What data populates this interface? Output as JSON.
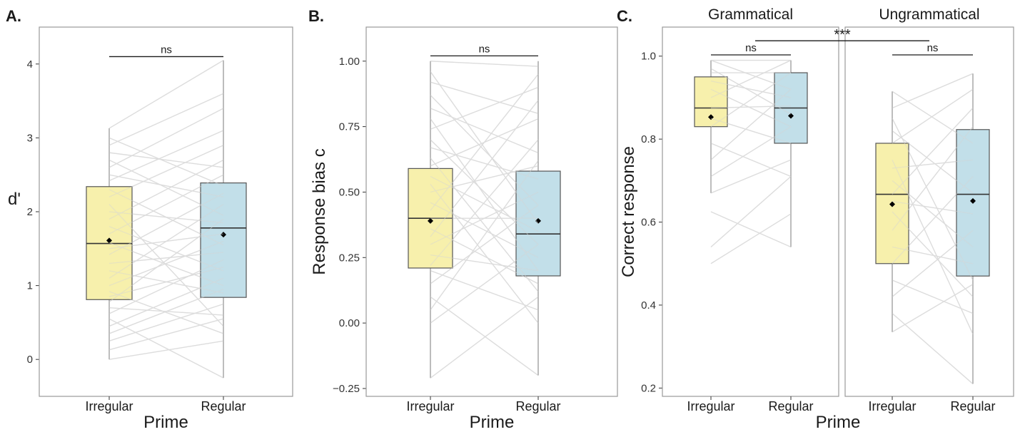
{
  "colors": {
    "irregular_fill": "#f5ed9a",
    "regular_fill": "#b4d8e4",
    "box_stroke": "#555555",
    "subject_line": "#dddddd",
    "whisker": "#999999",
    "panel_border": "#9a9a9a",
    "mean_point": "#000000"
  },
  "chart_data": [
    {
      "panel": "A.",
      "type": "box",
      "xlabel": "Prime",
      "ylabel": "d'",
      "ylim": [
        -0.5,
        4.5
      ],
      "yticks": [
        0,
        1,
        2,
        3,
        4
      ],
      "ytick_labels": [
        "0",
        "1",
        "2",
        "3",
        "4"
      ],
      "categories": [
        "Irregular",
        "Regular"
      ],
      "boxes": [
        {
          "category": "Irregular",
          "lower_whisker": 0.0,
          "q1": 0.81,
          "median": 1.57,
          "q3": 2.34,
          "upper_whisker": 3.13,
          "mean": 1.61
        },
        {
          "category": "Regular",
          "lower_whisker": -0.25,
          "q1": 0.84,
          "median": 1.78,
          "q3": 2.39,
          "upper_whisker": 4.05,
          "mean": 1.69
        }
      ],
      "paired_lines": [
        [
          0.0,
          0.25
        ],
        [
          0.13,
          0.55
        ],
        [
          0.25,
          0.75
        ],
        [
          0.35,
          0.95
        ],
        [
          0.45,
          1.1
        ],
        [
          0.55,
          -0.25
        ],
        [
          0.62,
          1.35
        ],
        [
          0.7,
          0.6
        ],
        [
          0.78,
          1.9
        ],
        [
          0.85,
          1.25
        ],
        [
          0.92,
          0.35
        ],
        [
          1.0,
          1.6
        ],
        [
          1.1,
          2.1
        ],
        [
          1.2,
          0.9
        ],
        [
          1.3,
          1.45
        ],
        [
          1.42,
          2.25
        ],
        [
          1.5,
          1.7
        ],
        [
          1.58,
          1.0
        ],
        [
          1.7,
          2.5
        ],
        [
          1.8,
          1.2
        ],
        [
          1.9,
          2.7
        ],
        [
          2.0,
          1.85
        ],
        [
          2.1,
          0.45
        ],
        [
          2.2,
          2.9
        ],
        [
          2.3,
          1.55
        ],
        [
          2.42,
          3.1
        ],
        [
          2.5,
          2.2
        ],
        [
          2.6,
          3.4
        ],
        [
          2.7,
          1.95
        ],
        [
          2.8,
          2.6
        ],
        [
          2.9,
          3.6
        ],
        [
          3.0,
          2.35
        ],
        [
          3.13,
          4.05
        ]
      ],
      "comparisons": [
        {
          "from": "Irregular",
          "to": "Regular",
          "label": "ns",
          "y": 4.1
        }
      ]
    },
    {
      "panel": "B.",
      "type": "box",
      "xlabel": "Prime",
      "ylabel": "Response bias c",
      "ylim": [
        -0.28,
        1.13
      ],
      "yticks": [
        -0.25,
        0.0,
        0.25,
        0.5,
        0.75,
        1.0
      ],
      "ytick_labels": [
        "−0.25",
        "0.00",
        "0.25",
        "0.50",
        "0.75",
        "1.00"
      ],
      "categories": [
        "Irregular",
        "Regular"
      ],
      "boxes": [
        {
          "category": "Irregular",
          "lower_whisker": -0.21,
          "q1": 0.21,
          "median": 0.4,
          "q3": 0.59,
          "upper_whisker": 1.0,
          "mean": 0.39
        },
        {
          "category": "Regular",
          "lower_whisker": -0.2,
          "q1": 0.18,
          "median": 0.34,
          "q3": 0.58,
          "upper_whisker": 1.0,
          "mean": 0.39
        }
      ],
      "paired_lines": [
        [
          -0.21,
          0.1
        ],
        [
          0.0,
          0.3
        ],
        [
          0.05,
          0.62
        ],
        [
          0.1,
          -0.2
        ],
        [
          0.15,
          0.45
        ],
        [
          0.2,
          0.05
        ],
        [
          0.22,
          0.7
        ],
        [
          0.26,
          0.2
        ],
        [
          0.3,
          0.5
        ],
        [
          0.33,
          0.85
        ],
        [
          0.36,
          0.15
        ],
        [
          0.4,
          0.4
        ],
        [
          0.43,
          0.95
        ],
        [
          0.46,
          0.25
        ],
        [
          0.5,
          0.6
        ],
        [
          0.53,
          0.0
        ],
        [
          0.56,
          0.35
        ],
        [
          0.6,
          0.78
        ],
        [
          0.63,
          0.12
        ],
        [
          0.67,
          0.55
        ],
        [
          0.7,
          0.3
        ],
        [
          0.74,
          0.9
        ],
        [
          0.78,
          0.2
        ],
        [
          0.82,
          0.65
        ],
        [
          0.87,
          0.45
        ],
        [
          0.92,
          0.8
        ],
        [
          0.96,
          0.38
        ],
        [
          1.0,
          0.98
        ]
      ],
      "comparisons": [
        {
          "from": "Irregular",
          "to": "Regular",
          "label": "ns",
          "y": 1.02
        }
      ]
    },
    {
      "panel": "C.",
      "type": "box",
      "xlabel": "Prime",
      "ylabel": "Correct response",
      "ylim": [
        0.18,
        1.07
      ],
      "yticks": [
        0.2,
        0.4,
        0.6,
        0.8,
        1.0
      ],
      "ytick_labels": [
        "0.2",
        "0.4",
        "0.6",
        "0.8",
        "1.0"
      ],
      "categories": [
        "Irregular",
        "Regular"
      ],
      "facets": [
        {
          "strip": "Grammatical",
          "boxes": [
            {
              "category": "Irregular",
              "lower_whisker": 0.67,
              "q1": 0.83,
              "median": 0.875,
              "q3": 0.95,
              "upper_whisker": 0.99,
              "mean": 0.853
            },
            {
              "category": "Regular",
              "lower_whisker": 0.54,
              "q1": 0.79,
              "median": 0.875,
              "q3": 0.96,
              "upper_whisker": 0.99,
              "mean": 0.856
            }
          ],
          "paired_lines": [
            [
              0.5,
              0.62
            ],
            [
              0.54,
              0.71
            ],
            [
              0.625,
              0.54
            ],
            [
              0.67,
              0.75
            ],
            [
              0.71,
              0.83
            ],
            [
              0.75,
              0.92
            ],
            [
              0.79,
              0.71
            ],
            [
              0.83,
              0.96
            ],
            [
              0.85,
              0.79
            ],
            [
              0.875,
              0.88
            ],
            [
              0.9,
              0.99
            ],
            [
              0.92,
              0.83
            ],
            [
              0.94,
              0.9
            ],
            [
              0.96,
              0.96
            ],
            [
              0.97,
              0.86
            ],
            [
              0.99,
              0.99
            ],
            [
              0.99,
              0.92
            ]
          ],
          "comparisons": [
            {
              "from": "Irregular",
              "to": "Regular",
              "label": "ns",
              "y": 1.003
            }
          ]
        },
        {
          "strip": "Ungrammatical",
          "boxes": [
            {
              "category": "Irregular",
              "lower_whisker": 0.335,
              "q1": 0.5,
              "median": 0.667,
              "q3": 0.79,
              "upper_whisker": 0.915,
              "mean": 0.643
            },
            {
              "category": "Regular",
              "lower_whisker": 0.21,
              "q1": 0.47,
              "median": 0.667,
              "q3": 0.823,
              "upper_whisker": 0.958,
              "mean": 0.651
            }
          ],
          "paired_lines": [
            [
              0.335,
              0.45
            ],
            [
              0.38,
              0.21
            ],
            [
              0.42,
              0.58
            ],
            [
              0.46,
              0.38
            ],
            [
              0.5,
              0.71
            ],
            [
              0.54,
              0.5
            ],
            [
              0.58,
              0.83
            ],
            [
              0.625,
              0.42
            ],
            [
              0.65,
              0.62
            ],
            [
              0.667,
              0.875
            ],
            [
              0.7,
              0.54
            ],
            [
              0.73,
              0.75
            ],
            [
              0.75,
              0.33
            ],
            [
              0.79,
              0.92
            ],
            [
              0.82,
              0.67
            ],
            [
              0.85,
              0.46
            ],
            [
              0.875,
              0.958
            ],
            [
              0.915,
              0.79
            ]
          ],
          "comparisons": [
            {
              "from": "Irregular",
              "to": "Regular",
              "label": "ns",
              "y": 1.003
            }
          ]
        }
      ],
      "cross_facet_comparison": {
        "label": "***",
        "y": 1.037
      }
    }
  ]
}
